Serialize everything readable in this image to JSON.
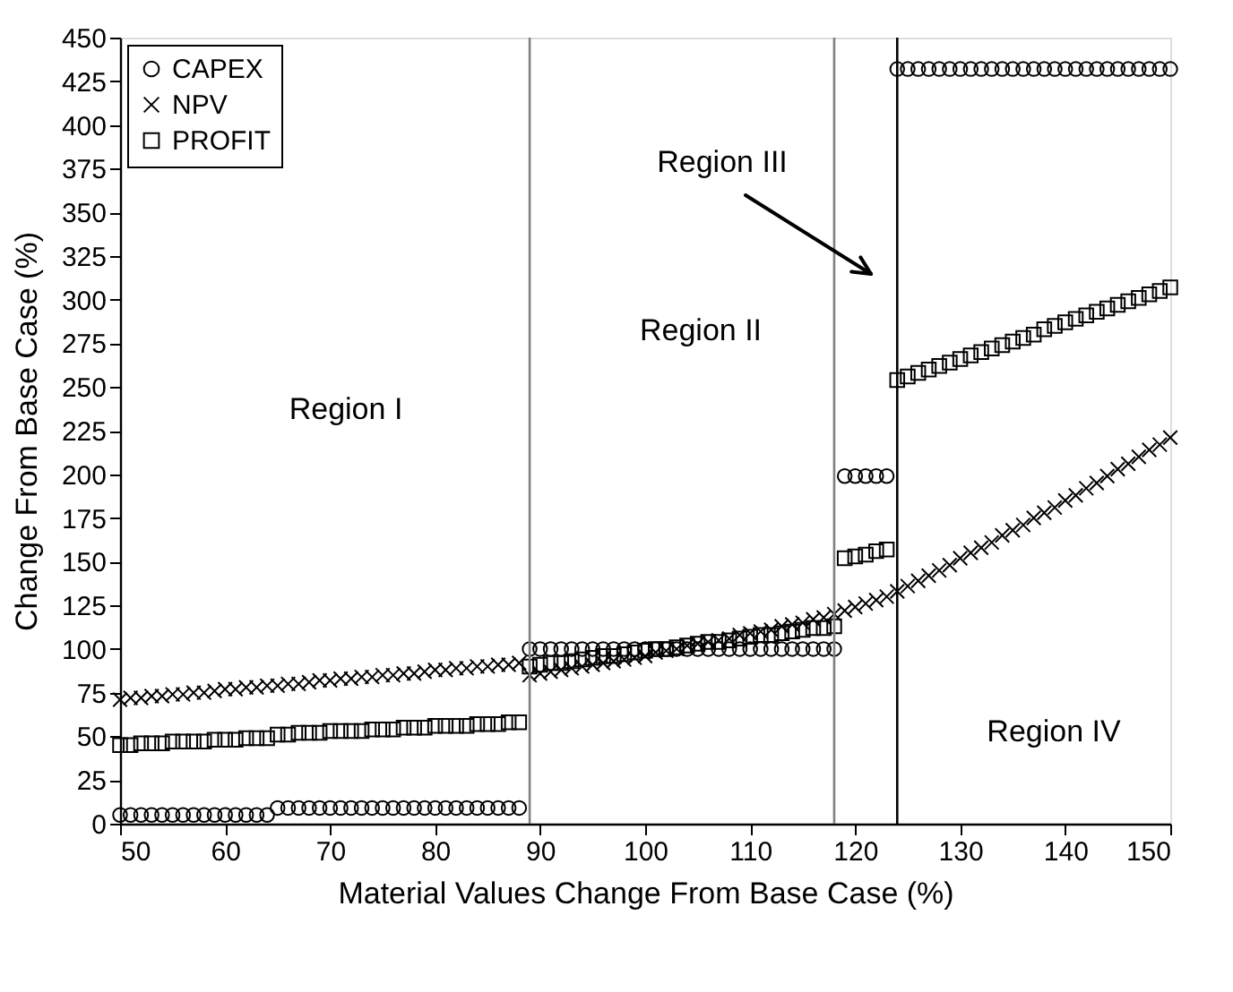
{
  "chart_data": {
    "type": "scatter",
    "xlabel": "Material Values Change From Base Case (%)",
    "ylabel": "Change From Base Case (%)",
    "x": [
      50,
      51,
      52,
      53,
      54,
      55,
      56,
      57,
      58,
      59,
      60,
      61,
      62,
      63,
      64,
      65,
      66,
      67,
      68,
      69,
      70,
      71,
      72,
      73,
      74,
      75,
      76,
      77,
      78,
      79,
      80,
      81,
      82,
      83,
      84,
      85,
      86,
      87,
      88,
      89,
      90,
      91,
      92,
      93,
      94,
      95,
      96,
      97,
      98,
      99,
      100,
      101,
      102,
      103,
      104,
      105,
      106,
      107,
      108,
      109,
      110,
      111,
      112,
      113,
      114,
      115,
      116,
      117,
      118,
      119,
      120,
      121,
      122,
      123,
      124,
      125,
      126,
      127,
      128,
      129,
      130,
      131,
      132,
      133,
      134,
      135,
      136,
      137,
      138,
      139,
      140,
      141,
      142,
      143,
      144,
      145,
      146,
      147,
      148,
      149,
      150
    ],
    "series": [
      {
        "name": "CAPEX",
        "color": "#000000",
        "marker": "circle",
        "values": [
          5,
          5,
          5,
          5,
          5,
          5,
          5,
          5,
          5,
          5,
          5,
          5,
          5,
          5,
          5,
          9,
          9,
          9,
          9,
          9,
          9,
          9,
          9,
          9,
          9,
          9,
          9,
          9,
          9,
          9,
          9,
          9,
          9,
          9,
          9,
          9,
          9,
          9,
          9,
          100,
          100,
          100,
          100,
          100,
          100,
          100,
          100,
          100,
          100,
          100,
          100,
          100,
          100,
          100,
          100,
          100,
          100,
          100,
          100,
          100,
          100,
          100,
          100,
          100,
          100,
          100,
          100,
          100,
          100,
          199,
          199,
          199,
          199,
          199,
          432,
          432,
          432,
          432,
          432,
          432,
          432,
          432,
          432,
          432,
          432,
          432,
          432,
          432,
          432,
          432,
          432,
          432,
          432,
          432,
          432,
          432,
          432,
          432,
          432,
          432,
          432
        ]
      },
      {
        "name": "NPV",
        "color": "#000000",
        "marker": "cross",
        "values": [
          71,
          72,
          72,
          73,
          73,
          74,
          74,
          75,
          75,
          76,
          77,
          77,
          78,
          78,
          79,
          79,
          80,
          80,
          81,
          82,
          82,
          83,
          83,
          84,
          84,
          85,
          85,
          86,
          86,
          87,
          88,
          88,
          89,
          89,
          90,
          90,
          91,
          91,
          92,
          85,
          86,
          87,
          88,
          89,
          90,
          91,
          92,
          93,
          94,
          95,
          96,
          98,
          99,
          100,
          102,
          103,
          104,
          105,
          106,
          108,
          109,
          110,
          111,
          113,
          114,
          115,
          117,
          118,
          120,
          122,
          124,
          126,
          128,
          130,
          133,
          136,
          139,
          142,
          145,
          148,
          152,
          155,
          158,
          161,
          165,
          168,
          171,
          175,
          178,
          181,
          185,
          188,
          192,
          195,
          199,
          203,
          206,
          210,
          214,
          217,
          221
        ]
      },
      {
        "name": "PROFIT",
        "color": "#000000",
        "marker": "square",
        "values": [
          45,
          45,
          46,
          46,
          46,
          47,
          47,
          47,
          47,
          48,
          48,
          48,
          49,
          49,
          49,
          51,
          51,
          52,
          52,
          52,
          53,
          53,
          53,
          53,
          54,
          54,
          54,
          55,
          55,
          55,
          56,
          56,
          56,
          56,
          57,
          57,
          57,
          58,
          58,
          90,
          91,
          92,
          92,
          93,
          94,
          95,
          96,
          96,
          97,
          98,
          99,
          100,
          100,
          101,
          102,
          103,
          104,
          104,
          105,
          106,
          107,
          108,
          108,
          109,
          110,
          111,
          112,
          112,
          113,
          152,
          153,
          154,
          156,
          157,
          254,
          256,
          258,
          260,
          262,
          264,
          266,
          268,
          270,
          272,
          274,
          276,
          278,
          280,
          283,
          285,
          287,
          289,
          291,
          293,
          295,
          297,
          299,
          301,
          303,
          305,
          307
        ]
      }
    ],
    "xlim": [
      50,
      150
    ],
    "xticks": [
      50,
      60,
      70,
      80,
      90,
      100,
      110,
      120,
      130,
      140,
      150
    ],
    "ylim": [
      0,
      450
    ],
    "yticks": [
      0,
      25,
      50,
      75,
      100,
      125,
      150,
      175,
      200,
      225,
      250,
      275,
      300,
      325,
      350,
      375,
      400,
      425,
      450
    ],
    "ref_lines": [
      {
        "axis": "x",
        "value": 89,
        "color": "#808080"
      },
      {
        "axis": "x",
        "value": 118,
        "color": "#808080"
      },
      {
        "axis": "x",
        "value": 124,
        "color": "#000000"
      }
    ],
    "annotations": [
      "Region I",
      "Region II",
      "Region III",
      "Region IV"
    ],
    "legend": "top left",
    "grid": false
  }
}
